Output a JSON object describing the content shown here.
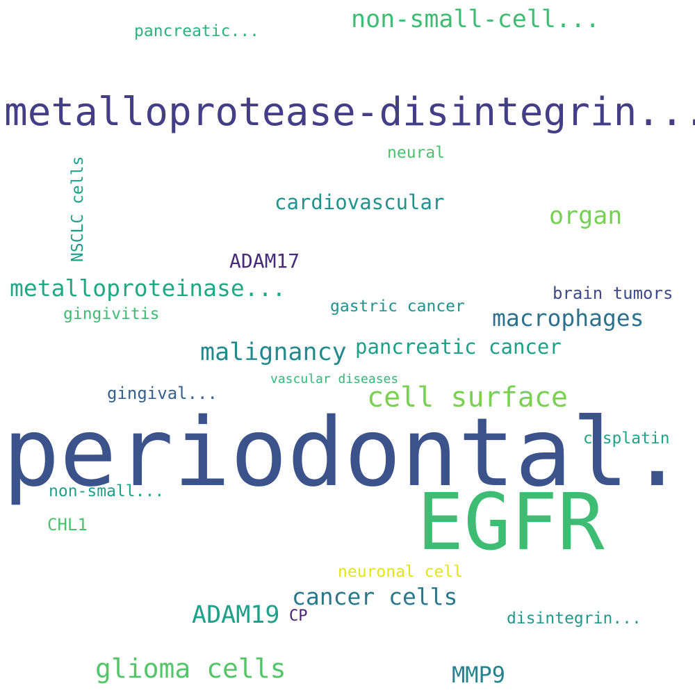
{
  "words": [
    {
      "key": "pancreatic_trunc",
      "text": "pancreatic...",
      "color": "#2db27d"
    },
    {
      "key": "nonsmallcell_trunc",
      "text": "non-small-cell...",
      "color": "#3fbc73"
    },
    {
      "key": "metalloprotease",
      "text": "metalloprotease-disintegrin...",
      "color": "#433e85"
    },
    {
      "key": "neural",
      "text": "neural",
      "color": "#4ac16d"
    },
    {
      "key": "nsclc",
      "text": "NSCLC cells",
      "color": "#1f9e89"
    },
    {
      "key": "cardiovascular",
      "text": "cardiovascular",
      "color": "#1f948c"
    },
    {
      "key": "organ",
      "text": "organ",
      "color": "#75d054"
    },
    {
      "key": "adam17",
      "text": "ADAM17",
      "color": "#472a7a"
    },
    {
      "key": "metalloproteinase",
      "text": "metalloproteinase...",
      "color": "#22a785"
    },
    {
      "key": "brain_tumors",
      "text": "brain tumors",
      "color": "#3e4989"
    },
    {
      "key": "gingivitis",
      "text": "gingivitis",
      "color": "#3fbc73"
    },
    {
      "key": "gastric_cancer",
      "text": "gastric cancer",
      "color": "#21918c"
    },
    {
      "key": "macrophages",
      "text": "macrophages",
      "color": "#2c728e"
    },
    {
      "key": "malignancy",
      "text": "malignancy",
      "color": "#23898e"
    },
    {
      "key": "pancreatic_cancer",
      "text": "pancreatic cancer",
      "color": "#1fa088"
    },
    {
      "key": "vascular_diseases",
      "text": "vascular diseases",
      "color": "#35b779"
    },
    {
      "key": "gingival_trunc",
      "text": "gingival...",
      "color": "#355f8d"
    },
    {
      "key": "cell_surface",
      "text": "cell surface",
      "color": "#7ad151"
    },
    {
      "key": "cisplatin",
      "text": "cisplatin",
      "color": "#20a486"
    },
    {
      "key": "periodontal",
      "text": "periodontal...",
      "color": "#3b528b"
    },
    {
      "key": "nonsmall_trunc",
      "text": "non-small...",
      "color": "#1fa088"
    },
    {
      "key": "egfr",
      "text": "EGFR",
      "color": "#3fbc73"
    },
    {
      "key": "chl1",
      "text": "CHL1",
      "color": "#4ac16d"
    },
    {
      "key": "neuronal_cell",
      "text": "neuronal cell",
      "color": "#e3e418"
    },
    {
      "key": "cancer_cells",
      "text": "cancer cells",
      "color": "#2a788e"
    },
    {
      "key": "adam19",
      "text": "ADAM19",
      "color": "#1fa088"
    },
    {
      "key": "cp",
      "text": "CP",
      "color": "#482173"
    },
    {
      "key": "disintegrin_trunc",
      "text": "disintegrin...",
      "color": "#1f988b"
    },
    {
      "key": "glioma_cells",
      "text": "glioma cells",
      "color": "#54c568"
    },
    {
      "key": "mmp9",
      "text": "MMP9",
      "color": "#26828e"
    }
  ]
}
